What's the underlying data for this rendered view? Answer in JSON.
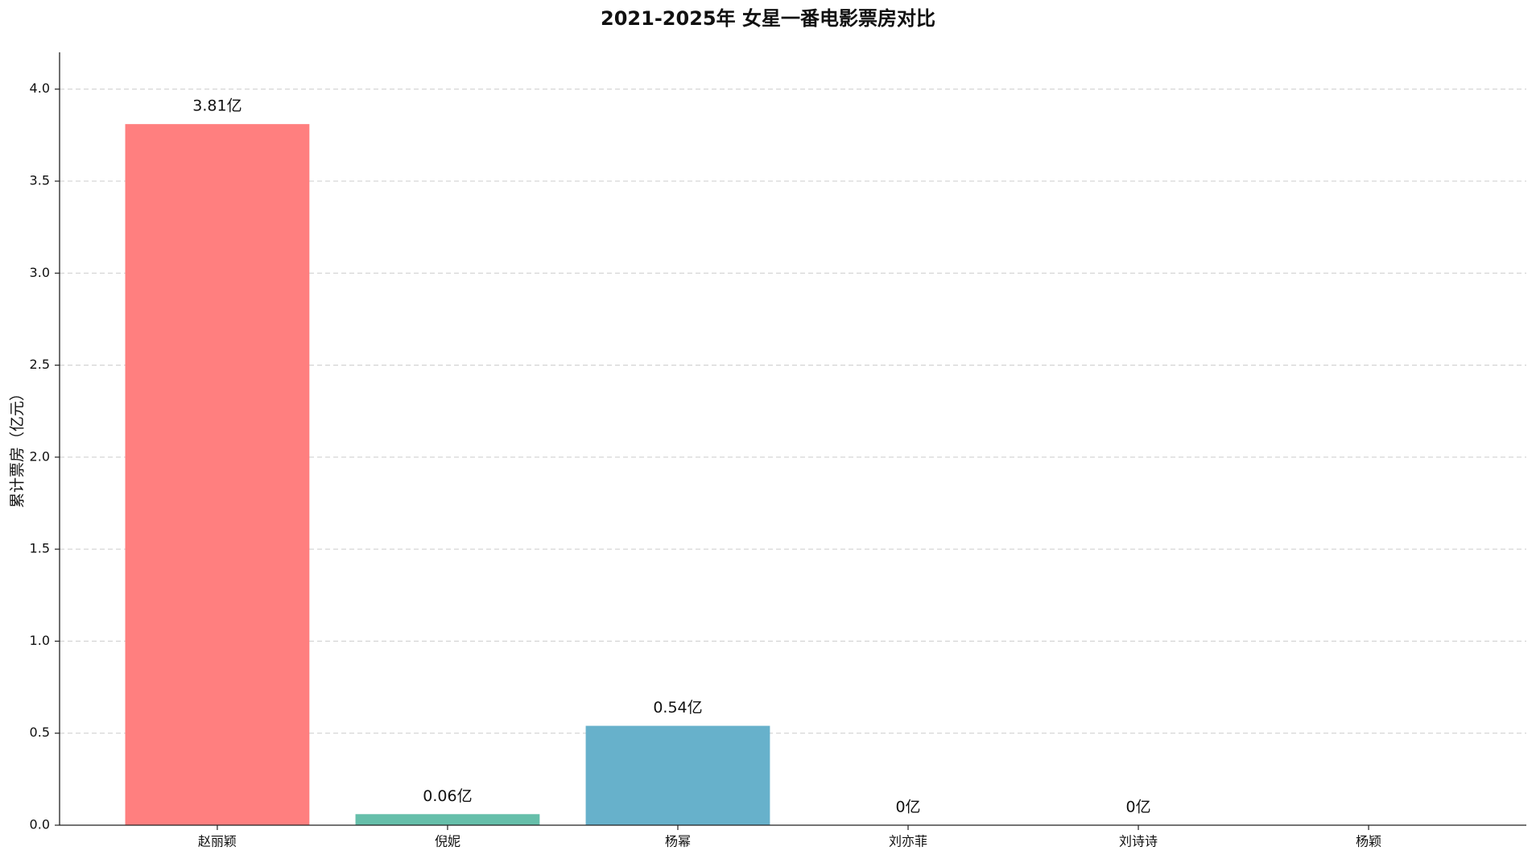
{
  "chart_data": {
    "type": "bar",
    "title": "2021-2025年 女星一番电影票房对比",
    "y_label": "累计票房（亿元）",
    "categories": [
      "赵丽颖",
      "倪妮",
      "杨幂",
      "刘亦菲",
      "刘诗诗",
      "杨颖"
    ],
    "values": [
      3.81,
      0.06,
      0.54,
      0,
      0,
      0
    ],
    "value_labels": [
      "3.81亿",
      "0.06亿",
      "0.54亿",
      "0亿",
      "0亿",
      null
    ],
    "colors": [
      "#ff7f7f",
      "#66bfaa",
      "#67b1cb",
      "#cccccc",
      "#cccccc",
      "#cccccc"
    ],
    "ylim": [
      0,
      4.2
    ],
    "yticks": [
      {
        "value": 0,
        "label": "0.0"
      },
      {
        "value": 0.5,
        "label": "0.5"
      },
      {
        "value": 1,
        "label": "1.0"
      },
      {
        "value": 1.5,
        "label": "1.5"
      },
      {
        "value": 2,
        "label": "2.0"
      },
      {
        "value": 2.5,
        "label": "2.5"
      },
      {
        "value": 3,
        "label": "3.0"
      },
      {
        "value": 3.5,
        "label": "3.5"
      },
      {
        "value": 4,
        "label": "4.0"
      }
    ],
    "grid": true
  }
}
